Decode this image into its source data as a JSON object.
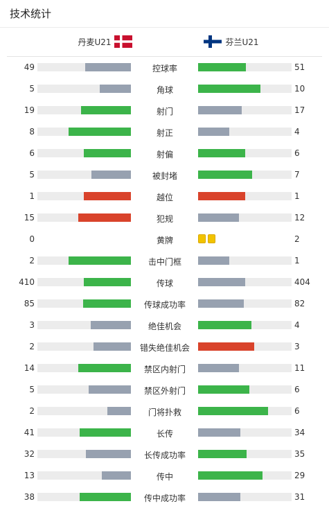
{
  "header": {
    "title": "技术统计"
  },
  "teams": {
    "home": {
      "name": "丹麦U21",
      "flag_icon": "denmark-flag-icon"
    },
    "away": {
      "name": "芬兰U21",
      "flag_icon": "finland-flag-icon"
    }
  },
  "colors": {
    "green": "#3cb44a",
    "gray": "#97a1b0",
    "red": "#d9432b",
    "track": "#ececec",
    "yellow_card": "#f2c300"
  },
  "stats": [
    {
      "label": "控球率",
      "home": "49",
      "away": "51",
      "home_fraction": 0.49,
      "away_fraction": 0.51,
      "home_color": "gray",
      "away_color": "green"
    },
    {
      "label": "角球",
      "home": "5",
      "away": "10",
      "home_fraction": 0.33,
      "away_fraction": 0.67,
      "home_color": "gray",
      "away_color": "green"
    },
    {
      "label": "射门",
      "home": "19",
      "away": "17",
      "home_fraction": 0.53,
      "away_fraction": 0.47,
      "home_color": "green",
      "away_color": "gray"
    },
    {
      "label": "射正",
      "home": "8",
      "away": "4",
      "home_fraction": 0.67,
      "away_fraction": 0.33,
      "home_color": "green",
      "away_color": "gray"
    },
    {
      "label": "射偏",
      "home": "6",
      "away": "6",
      "home_fraction": 0.5,
      "away_fraction": 0.5,
      "home_color": "green",
      "away_color": "green"
    },
    {
      "label": "被封堵",
      "home": "5",
      "away": "7",
      "home_fraction": 0.42,
      "away_fraction": 0.58,
      "home_color": "gray",
      "away_color": "green"
    },
    {
      "label": "越位",
      "home": "1",
      "away": "1",
      "home_fraction": 0.5,
      "away_fraction": 0.5,
      "home_color": "red",
      "away_color": "red"
    },
    {
      "label": "犯规",
      "home": "15",
      "away": "12",
      "home_fraction": 0.56,
      "away_fraction": 0.44,
      "home_color": "red",
      "away_color": "gray"
    },
    {
      "label": "黄牌",
      "home": "0",
      "away": "2",
      "home_yellow_cards": 0,
      "away_yellow_cards": 2
    },
    {
      "label": "击中门框",
      "home": "2",
      "away": "1",
      "home_fraction": 0.67,
      "away_fraction": 0.33,
      "home_color": "green",
      "away_color": "gray"
    },
    {
      "label": "传球",
      "home": "410",
      "away": "404",
      "home_fraction": 0.5,
      "away_fraction": 0.5,
      "home_color": "green",
      "away_color": "gray"
    },
    {
      "label": "传球成功率",
      "home": "85",
      "away": "82",
      "home_fraction": 0.51,
      "away_fraction": 0.49,
      "home_color": "green",
      "away_color": "gray"
    },
    {
      "label": "绝佳机会",
      "home": "3",
      "away": "4",
      "home_fraction": 0.43,
      "away_fraction": 0.57,
      "home_color": "gray",
      "away_color": "green"
    },
    {
      "label": "错失绝佳机会",
      "home": "2",
      "away": "3",
      "home_fraction": 0.4,
      "away_fraction": 0.6,
      "home_color": "gray",
      "away_color": "red"
    },
    {
      "label": "禁区内射门",
      "home": "14",
      "away": "11",
      "home_fraction": 0.56,
      "away_fraction": 0.44,
      "home_color": "green",
      "away_color": "gray"
    },
    {
      "label": "禁区外射门",
      "home": "5",
      "away": "6",
      "home_fraction": 0.45,
      "away_fraction": 0.55,
      "home_color": "gray",
      "away_color": "green"
    },
    {
      "label": "门将扑救",
      "home": "2",
      "away": "6",
      "home_fraction": 0.25,
      "away_fraction": 0.75,
      "home_color": "gray",
      "away_color": "green"
    },
    {
      "label": "长传",
      "home": "41",
      "away": "34",
      "home_fraction": 0.55,
      "away_fraction": 0.45,
      "home_color": "green",
      "away_color": "gray"
    },
    {
      "label": "长传成功率",
      "home": "32",
      "away": "35",
      "home_fraction": 0.48,
      "away_fraction": 0.52,
      "home_color": "gray",
      "away_color": "green"
    },
    {
      "label": "传中",
      "home": "13",
      "away": "29",
      "home_fraction": 0.31,
      "away_fraction": 0.69,
      "home_color": "gray",
      "away_color": "green"
    },
    {
      "label": "传中成功率",
      "home": "38",
      "away": "31",
      "home_fraction": 0.55,
      "away_fraction": 0.45,
      "home_color": "green",
      "away_color": "gray"
    }
  ]
}
